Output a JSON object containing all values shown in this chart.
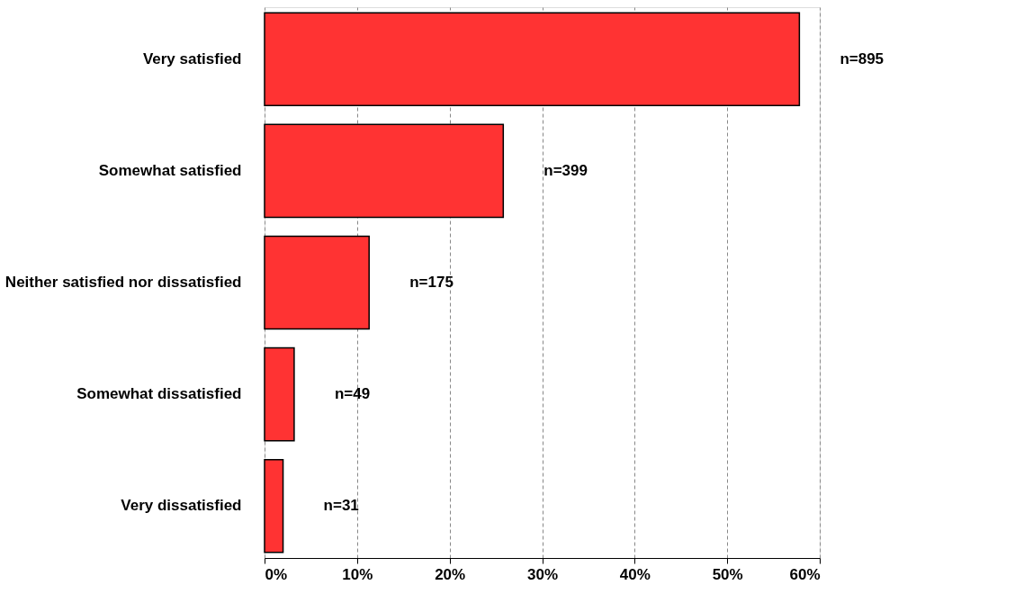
{
  "chart_data": {
    "type": "bar",
    "orientation": "horizontal",
    "categories": [
      "Very satisfied",
      "Somewhat satisfied",
      "Neither satisfied nor dissatisfied",
      "Somewhat dissatisfied",
      "Very dissatisfied"
    ],
    "values": [
      57.8,
      25.8,
      11.3,
      3.2,
      2.0
    ],
    "annotations": [
      {
        "text": "n=895",
        "x": 57.8,
        "y": "Very satisfied"
      },
      {
        "text": "n=399",
        "x": 25.8,
        "y": "Somewhat satisfied"
      },
      {
        "text": "n=175",
        "x": 11.3,
        "y": "Neither satisfied nor dissatisfied"
      },
      {
        "text": "n=49",
        "x": 3.2,
        "y": "Somewhat dissatisfied"
      },
      {
        "text": "n=31",
        "x": 2.0,
        "y": "Very dissatisfied"
      }
    ],
    "color": "#ff3333",
    "xlim": [
      0,
      60
    ],
    "xticks": [
      {
        "value": 0,
        "label": "0%"
      },
      {
        "value": 10,
        "label": "10%"
      },
      {
        "value": 20,
        "label": "20%"
      },
      {
        "value": 30,
        "label": "30%"
      },
      {
        "value": 40,
        "label": "40%"
      },
      {
        "value": 50,
        "label": "50%"
      },
      {
        "value": 60,
        "label": "60%"
      }
    ],
    "grid": "x"
  }
}
